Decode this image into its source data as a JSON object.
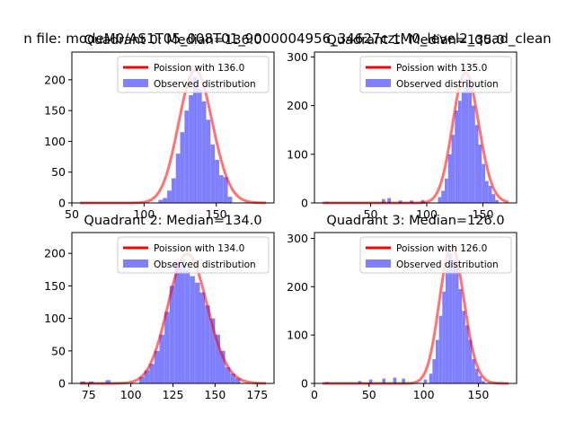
{
  "suptitle": "n file: modeM0/AS1T05_008T01_9000004956_34627cztM0_level2_quad_clean",
  "legend": {
    "observed_label": "Observed distribution"
  },
  "colors": {
    "poisson": "#ff0000",
    "observed": "#8080ff",
    "axis": "#000000"
  },
  "chart_data": [
    {
      "type": "bar",
      "title": "Quadrant 0: Median=136.0",
      "poisson_label": "Poission with 136.0",
      "mean": 136.0,
      "xlim": [
        50,
        190
      ],
      "ylim": [
        0,
        245
      ],
      "xticks": [
        50,
        100,
        150
      ],
      "yticks": [
        0,
        50,
        100,
        150,
        200
      ],
      "bin_width": 3,
      "bins": [
        {
          "x": 110,
          "y": 5
        },
        {
          "x": 113,
          "y": 8
        },
        {
          "x": 116,
          "y": 20
        },
        {
          "x": 119,
          "y": 40
        },
        {
          "x": 122,
          "y": 80
        },
        {
          "x": 125,
          "y": 115
        },
        {
          "x": 128,
          "y": 150
        },
        {
          "x": 131,
          "y": 175
        },
        {
          "x": 134,
          "y": 205
        },
        {
          "x": 137,
          "y": 185
        },
        {
          "x": 140,
          "y": 165
        },
        {
          "x": 143,
          "y": 135
        },
        {
          "x": 146,
          "y": 95
        },
        {
          "x": 149,
          "y": 70
        },
        {
          "x": 152,
          "y": 45
        },
        {
          "x": 155,
          "y": 42
        },
        {
          "x": 158,
          "y": 10
        }
      ]
    },
    {
      "type": "bar",
      "title": "Quadrant 1: Median=135.0",
      "poisson_label": "Poission with 135.0",
      "mean": 135.0,
      "xlim": [
        0,
        180
      ],
      "ylim": [
        0,
        310
      ],
      "xticks": [
        50,
        100,
        150
      ],
      "yticks": [
        0,
        100,
        200,
        300
      ],
      "bin_width": 3,
      "bins": [
        {
          "x": 10,
          "y": 2
        },
        {
          "x": 60,
          "y": 8
        },
        {
          "x": 65,
          "y": 10
        },
        {
          "x": 75,
          "y": 5
        },
        {
          "x": 85,
          "y": 5
        },
        {
          "x": 95,
          "y": 6
        },
        {
          "x": 110,
          "y": 12
        },
        {
          "x": 113,
          "y": 25
        },
        {
          "x": 116,
          "y": 50
        },
        {
          "x": 119,
          "y": 100
        },
        {
          "x": 122,
          "y": 140
        },
        {
          "x": 125,
          "y": 190
        },
        {
          "x": 128,
          "y": 210
        },
        {
          "x": 131,
          "y": 230
        },
        {
          "x": 134,
          "y": 255
        },
        {
          "x": 137,
          "y": 240
        },
        {
          "x": 140,
          "y": 200
        },
        {
          "x": 143,
          "y": 160
        },
        {
          "x": 146,
          "y": 120
        },
        {
          "x": 149,
          "y": 80
        },
        {
          "x": 152,
          "y": 45
        },
        {
          "x": 155,
          "y": 35
        },
        {
          "x": 158,
          "y": 18
        },
        {
          "x": 161,
          "y": 6
        }
      ]
    },
    {
      "type": "bar",
      "title": "Quadrant 2: Median=134.0",
      "poisson_label": "Poission with 134.0",
      "mean": 134.0,
      "xlim": [
        65,
        185
      ],
      "ylim": [
        0,
        232
      ],
      "xticks": [
        75,
        100,
        125,
        150,
        175
      ],
      "yticks": [
        0,
        50,
        100,
        150,
        200
      ],
      "bin_width": 3,
      "bins": [
        {
          "x": 70,
          "y": 3
        },
        {
          "x": 75,
          "y": 3
        },
        {
          "x": 85,
          "y": 5
        },
        {
          "x": 105,
          "y": 10
        },
        {
          "x": 108,
          "y": 20
        },
        {
          "x": 111,
          "y": 30
        },
        {
          "x": 114,
          "y": 50
        },
        {
          "x": 117,
          "y": 75
        },
        {
          "x": 120,
          "y": 110
        },
        {
          "x": 123,
          "y": 150
        },
        {
          "x": 126,
          "y": 185
        },
        {
          "x": 129,
          "y": 190
        },
        {
          "x": 132,
          "y": 175
        },
        {
          "x": 135,
          "y": 165
        },
        {
          "x": 138,
          "y": 155
        },
        {
          "x": 141,
          "y": 140
        },
        {
          "x": 144,
          "y": 120
        },
        {
          "x": 147,
          "y": 100
        },
        {
          "x": 150,
          "y": 75
        },
        {
          "x": 153,
          "y": 50
        },
        {
          "x": 156,
          "y": 25
        },
        {
          "x": 159,
          "y": 15
        },
        {
          "x": 162,
          "y": 8
        }
      ]
    },
    {
      "type": "bar",
      "title": "Quadrant 3: Median=126.0",
      "poisson_label": "Poission with 126.0",
      "mean": 126.0,
      "xlim": [
        0,
        185
      ],
      "ylim": [
        0,
        312
      ],
      "xticks": [
        0,
        50,
        100,
        150
      ],
      "yticks": [
        0,
        100,
        200,
        300
      ],
      "bin_width": 3,
      "bins": [
        {
          "x": 10,
          "y": 3
        },
        {
          "x": 40,
          "y": 5
        },
        {
          "x": 50,
          "y": 8
        },
        {
          "x": 62,
          "y": 10
        },
        {
          "x": 72,
          "y": 12
        },
        {
          "x": 80,
          "y": 10
        },
        {
          "x": 100,
          "y": 8
        },
        {
          "x": 105,
          "y": 20
        },
        {
          "x": 108,
          "y": 50
        },
        {
          "x": 111,
          "y": 90
        },
        {
          "x": 114,
          "y": 140
        },
        {
          "x": 117,
          "y": 190
        },
        {
          "x": 120,
          "y": 235
        },
        {
          "x": 123,
          "y": 270
        },
        {
          "x": 126,
          "y": 255
        },
        {
          "x": 129,
          "y": 240
        },
        {
          "x": 132,
          "y": 195
        },
        {
          "x": 135,
          "y": 150
        },
        {
          "x": 138,
          "y": 120
        },
        {
          "x": 141,
          "y": 90
        },
        {
          "x": 144,
          "y": 50
        },
        {
          "x": 147,
          "y": 30
        },
        {
          "x": 150,
          "y": 15
        },
        {
          "x": 153,
          "y": 5
        }
      ]
    }
  ]
}
